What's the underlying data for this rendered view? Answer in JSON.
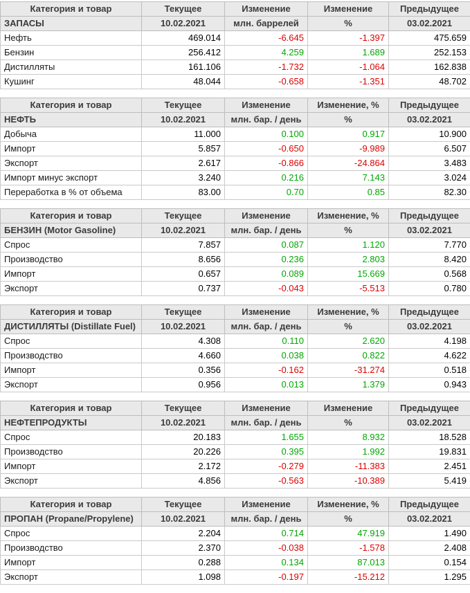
{
  "colors": {
    "positive": "#00a800",
    "negative": "#dd0000",
    "header_bg": "#e9e9e9",
    "header_text": "#3b3b3b"
  },
  "chart_data": [
    {
      "type": "table",
      "title": "ЗАПАСЫ",
      "headers": [
        "Категория и товар",
        "Текущее",
        "Изменение",
        "Изменение",
        "Предыдущее"
      ],
      "subheaders": [
        "ЗАПАСЫ",
        "10.02.2021",
        "млн. баррелей",
        "%",
        "03.02.2021"
      ],
      "rows": [
        [
          "Нефть",
          "469.014",
          "-6.645",
          "-1.397",
          "475.659"
        ],
        [
          "Бензин",
          "256.412",
          "4.259",
          "1.689",
          "252.153"
        ],
        [
          "Дистилляты",
          "161.106",
          "-1.732",
          "-1.064",
          "162.838"
        ],
        [
          "Кушинг",
          "48.044",
          "-0.658",
          "-1.351",
          "48.702"
        ]
      ]
    },
    {
      "type": "table",
      "title": "НЕФТЬ",
      "headers": [
        "Категория и товар",
        "Текущее",
        "Изменение",
        "Изменение, %",
        "Предыдущее"
      ],
      "subheaders": [
        "НЕФТЬ",
        "10.02.2021",
        "млн. бар. / день",
        "%",
        "03.02.2021"
      ],
      "rows": [
        [
          "Добыча",
          "11.000",
          "0.100",
          "0.917",
          "10.900"
        ],
        [
          "Импорт",
          "5.857",
          "-0.650",
          "-9.989",
          "6.507"
        ],
        [
          "Экспорт",
          "2.617",
          "-0.866",
          "-24.864",
          "3.483"
        ],
        [
          "Импорт минус экспорт",
          "3.240",
          "0.216",
          "7.143",
          "3.024"
        ],
        [
          "Переработка в % от объема",
          "83.00",
          "0.70",
          "0.85",
          "82.30"
        ]
      ]
    },
    {
      "type": "table",
      "title": "БЕНЗИН (Motor Gasoline)",
      "headers": [
        "Категория и товар",
        "Текущее",
        "Изменение",
        "Изменение, %",
        "Предыдущее"
      ],
      "subheaders": [
        "БЕНЗИН (Motor Gasoline)",
        "10.02.2021",
        "млн. бар. / день",
        "%",
        "03.02.2021"
      ],
      "rows": [
        [
          "Спрос",
          "7.857",
          "0.087",
          "1.120",
          "7.770"
        ],
        [
          "Производство",
          "8.656",
          "0.236",
          "2.803",
          "8.420"
        ],
        [
          "Импорт",
          "0.657",
          "0.089",
          "15.669",
          "0.568"
        ],
        [
          "Экспорт",
          "0.737",
          "-0.043",
          "-5.513",
          "0.780"
        ]
      ]
    },
    {
      "type": "table",
      "title": "ДИСТИЛЛЯТЫ (Distillate Fuel)",
      "headers": [
        "Категория и товар",
        "Текущее",
        "Изменение",
        "Изменение, %",
        "Предыдущее"
      ],
      "subheaders": [
        "ДИСТИЛЛЯТЫ (Distillate Fuel)",
        "10.02.2021",
        "млн. бар. / день",
        "%",
        "03.02.2021"
      ],
      "rows": [
        [
          "Спрос",
          "4.308",
          "0.110",
          "2.620",
          "4.198"
        ],
        [
          "Производство",
          "4.660",
          "0.038",
          "0.822",
          "4.622"
        ],
        [
          "Импорт",
          "0.356",
          "-0.162",
          "-31.274",
          "0.518"
        ],
        [
          "Экспорт",
          "0.956",
          "0.013",
          "1.379",
          "0.943"
        ]
      ]
    },
    {
      "type": "table",
      "title": "НЕФТЕПРОДУКТЫ",
      "headers": [
        "Категория и товар",
        "Текущее",
        "Изменение",
        "Изменение",
        "Предыдущее"
      ],
      "subheaders": [
        "НЕФТЕПРОДУКТЫ",
        "10.02.2021",
        "млн. бар. / день",
        "%",
        "03.02.2021"
      ],
      "rows": [
        [
          "Спрос",
          "20.183",
          "1.655",
          "8.932",
          "18.528"
        ],
        [
          "Производство",
          "20.226",
          "0.395",
          "1.992",
          "19.831"
        ],
        [
          "Импорт",
          "2.172",
          "-0.279",
          "-11.383",
          "2.451"
        ],
        [
          "Экспорт",
          "4.856",
          "-0.563",
          "-10.389",
          "5.419"
        ]
      ]
    },
    {
      "type": "table",
      "title": "ПРОПАН (Propane/Propylene)",
      "headers": [
        "Категория и товар",
        "Текущее",
        "Изменение",
        "Изменение, %",
        "Предыдущее"
      ],
      "subheaders": [
        "ПРОПАН (Propane/Propylene)",
        "10.02.2021",
        "млн. бар. / день",
        "%",
        "03.02.2021"
      ],
      "rows": [
        [
          "Спрос",
          "2.204",
          "0.714",
          "47.919",
          "1.490"
        ],
        [
          "Производство",
          "2.370",
          "-0.038",
          "-1.578",
          "2.408"
        ],
        [
          "Импорт",
          "0.288",
          "0.134",
          "87.013",
          "0.154"
        ],
        [
          "Экспорт",
          "1.098",
          "-0.197",
          "-15.212",
          "1.295"
        ]
      ]
    }
  ]
}
